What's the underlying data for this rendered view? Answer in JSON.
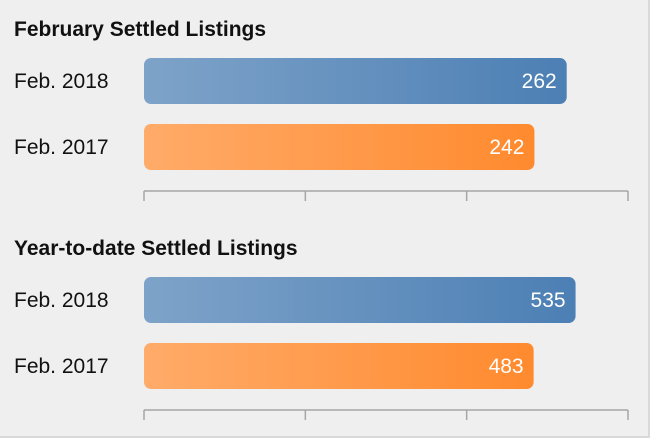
{
  "chart_data": [
    {
      "type": "bar",
      "orientation": "horizontal",
      "title": "February Settled Listings",
      "categories": [
        "Feb. 2018",
        "Feb. 2017"
      ],
      "values": [
        262,
        242
      ],
      "colors": [
        "#4c7fb4",
        "#ff8a2e"
      ],
      "xlim": [
        0,
        300
      ],
      "grid": false
    },
    {
      "type": "bar",
      "orientation": "horizontal",
      "title": "Year-to-date Settled Listings",
      "categories": [
        "Feb. 2018",
        "Feb. 2017"
      ],
      "values": [
        535,
        483
      ],
      "colors": [
        "#4c7fb4",
        "#ff8a2e"
      ],
      "xlim": [
        0,
        600
      ],
      "grid": false
    }
  ]
}
